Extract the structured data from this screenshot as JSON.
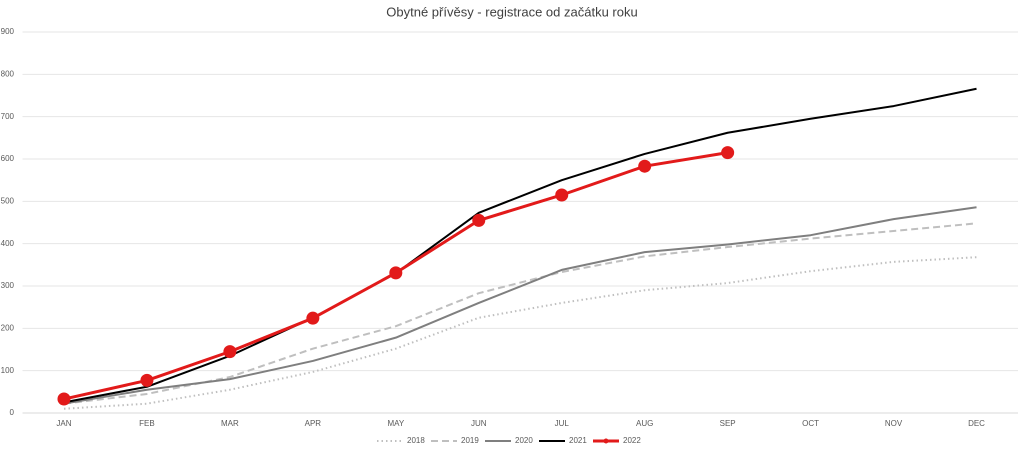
{
  "chart_data": {
    "type": "line",
    "title": "Obytné přívěsy - registrace od začátku roku",
    "categories": [
      "JAN",
      "FEB",
      "MAR",
      "APR",
      "MAY",
      "JUN",
      "JUL",
      "AUG",
      "SEP",
      "OCT",
      "NOV",
      "DEC"
    ],
    "series": [
      {
        "name": "2018",
        "color": "#bfbfbf",
        "line_style": "dotted",
        "values": [
          10,
          22,
          55,
          97,
          152,
          225,
          260,
          290,
          307,
          335,
          357,
          368
        ]
      },
      {
        "name": "2019",
        "color": "#bfbfbf",
        "line_style": "dashed",
        "values": [
          22,
          45,
          85,
          152,
          205,
          283,
          333,
          370,
          392,
          412,
          430,
          448
        ]
      },
      {
        "name": "2020",
        "color": "#7f7f7f",
        "line_style": "solid",
        "values": [
          22,
          55,
          80,
          123,
          178,
          260,
          338,
          380,
          398,
          420,
          458,
          486
        ]
      },
      {
        "name": "2021",
        "color": "#000000",
        "line_style": "solid",
        "values": [
          25,
          62,
          135,
          225,
          330,
          473,
          550,
          612,
          662,
          695,
          725,
          766
        ]
      },
      {
        "name": "2022",
        "color": "#e21a1a",
        "line_style": "solid",
        "markers": true,
        "values": [
          33,
          77,
          145,
          224,
          331,
          455,
          515,
          583,
          615,
          null,
          null,
          null
        ]
      }
    ],
    "ylim": [
      0,
      900
    ],
    "yticks": [
      0,
      100,
      200,
      300,
      400,
      500,
      600,
      700,
      800,
      900
    ],
    "grid": true,
    "legend": "bottom"
  }
}
